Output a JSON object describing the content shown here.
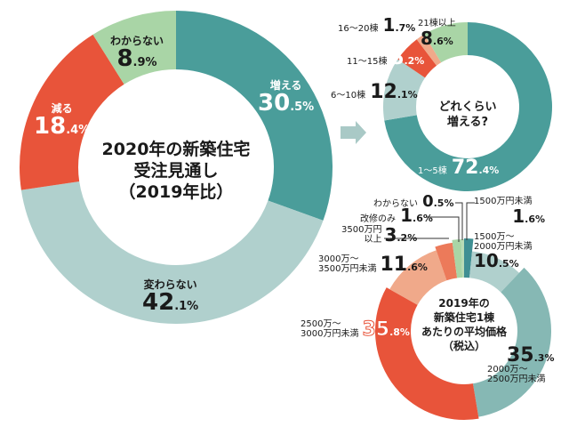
{
  "colors": {
    "teal": "#4a9d9a",
    "light_teal": "#b0d0cd",
    "mid_teal": "#86b8b4",
    "red": "#e8543a",
    "salmon": "#f0a98a",
    "orange": "#ec7a5a",
    "light_green": "#a9d5a6",
    "dark_teal": "#3f8f93",
    "arrow": "#a9c9c6"
  },
  "chart_data": [
    {
      "type": "pie",
      "variant": "donut",
      "title": "2020年の新築住宅受注見通し（2019年比）",
      "title_lines": [
        "2020年の新築住宅",
        "受注見通し",
        "（2019年比）"
      ],
      "unit": "%",
      "slices": [
        {
          "label": "増える",
          "value": 30.5,
          "int": "30",
          "dec": ".5%",
          "color": "#4a9d9a"
        },
        {
          "label": "変わらない",
          "value": 42.1,
          "int": "42",
          "dec": ".1%",
          "color": "#b0d0cd"
        },
        {
          "label": "減る",
          "value": 18.4,
          "int": "18",
          "dec": ".4%",
          "color": "#e8543a"
        },
        {
          "label": "わからない",
          "value": 8.9,
          "int": "8",
          "dec": ".9%",
          "color": "#a9d5a6"
        }
      ]
    },
    {
      "type": "pie",
      "variant": "donut",
      "title": "どれくらい増える?",
      "title_lines": [
        "どれくらい",
        "増える?"
      ],
      "unit": "%",
      "slices": [
        {
          "label": "1〜5棟",
          "value": 72.4,
          "int": "72",
          "dec": ".4%",
          "color": "#4a9d9a"
        },
        {
          "label": "6〜10棟",
          "value": 12.1,
          "int": "12",
          "dec": ".1%",
          "color": "#b0d0cd"
        },
        {
          "label": "11〜15棟",
          "value": 5.2,
          "int": "5",
          "dec": ".2%",
          "color": "#e8543a"
        },
        {
          "label": "16〜20棟",
          "value": 1.7,
          "int": "1",
          "dec": ".7%",
          "color": "#f0a98a"
        },
        {
          "label": "21棟以上",
          "value": 8.6,
          "int": "8",
          "dec": ".6%",
          "color": "#a9d5a6"
        }
      ]
    },
    {
      "type": "pie",
      "variant": "donut",
      "title": "2019年の新築住宅1棟あたりの平均価格（税込）",
      "title_lines": [
        "2019年の",
        "新築住宅1棟",
        "あたりの平均価格",
        "（税込）"
      ],
      "unit": "%",
      "slices": [
        {
          "label": "1500万円未満",
          "value": 1.6,
          "int": "1",
          "dec": ".6%",
          "color": "#3f8f93"
        },
        {
          "label": "1500万〜2000万円未満",
          "value": 10.5,
          "int": "10",
          "dec": ".5%",
          "color": "#b0d0cd"
        },
        {
          "label": "2000万〜2500万円未満",
          "value": 35.3,
          "int": "35",
          "dec": ".3%",
          "color": "#86b8b4"
        },
        {
          "label": "2500万〜3000万円未満",
          "value": 35.8,
          "int": "35",
          "dec": ".8%",
          "color": "#e8543a"
        },
        {
          "label": "3000万〜3500万円未満",
          "value": 11.6,
          "int": "11",
          "dec": ".6%",
          "color": "#f0a98a"
        },
        {
          "label": "3500万円以上",
          "value": 3.2,
          "int": "3",
          "dec": ".2%",
          "color": "#ec7a5a"
        },
        {
          "label": "改修のみ",
          "value": 1.6,
          "int": "1",
          "dec": ".6%",
          "color": "#a9d5a6"
        },
        {
          "label": "わからない",
          "value": 0.5,
          "int": "0",
          "dec": ".5%",
          "color": "#b9dcb6"
        }
      ]
    }
  ],
  "labels": {
    "main": {
      "increase": {
        "label": "増える"
      },
      "same": {
        "label": "変わらない"
      },
      "decrease": {
        "label": "減る"
      },
      "unknown": {
        "label": "わからない"
      }
    },
    "how_many": {
      "b1": {
        "label": "1〜5棟"
      },
      "b2": {
        "label": "6〜10棟"
      },
      "b3": {
        "label": "11〜15棟"
      },
      "b4": {
        "label": "16〜20棟"
      },
      "b5": {
        "label": "21棟以上"
      }
    },
    "price": {
      "p1": {
        "label": "1500万円未満"
      },
      "p2": {
        "line1": "1500万〜",
        "line2": "2000万円未満"
      },
      "p3": {
        "line1": "2000万〜",
        "line2": "2500万円未満"
      },
      "p4": {
        "line1": "2500万〜",
        "line2": "3000万円未満"
      },
      "p5": {
        "line1": "3000万〜",
        "line2": "3500万円未満"
      },
      "p6": {
        "line1": "3500万円",
        "line2": "以上"
      },
      "p7": {
        "label": "改修のみ"
      },
      "p8": {
        "label": "わからない"
      }
    }
  }
}
